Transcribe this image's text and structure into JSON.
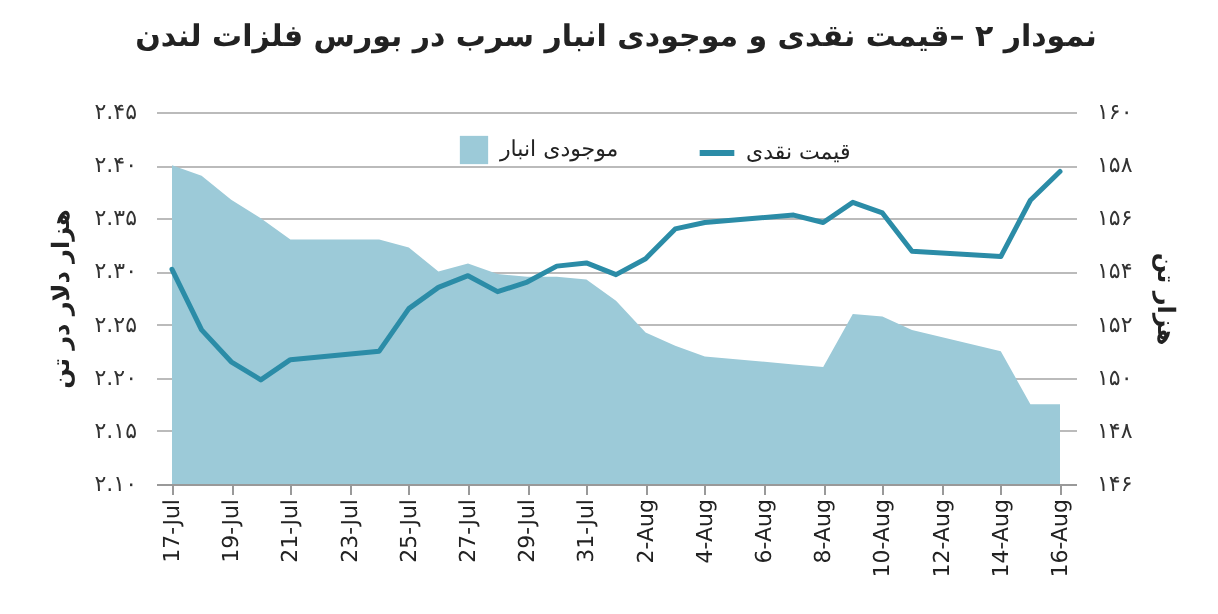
{
  "chart_data": {
    "type": "line",
    "title": "نمودار ۲ –قیمت نقدی و موجودی انبار سرب در بورس فلزات لندن",
    "ylabel": "هزار دلار در تن",
    "y2label": "هزار تن",
    "x": [
      "--07-17",
      "--07-18",
      "--07-19",
      "--07-20",
      "--07-21",
      "--07-24",
      "--07-25",
      "--07-26",
      "--07-27",
      "--07-28",
      "--07-29",
      "--07-30",
      "--07-31",
      "--08-01",
      "--08-02",
      "--08-03",
      "--08-04",
      "--08-07",
      "--08-08",
      "--08-09",
      "--08-10",
      "--08-11",
      "--08-14",
      "--08-15",
      "--08-16"
    ],
    "series": [
      {
        "name": "موجودی انبار",
        "type": "area",
        "axis": "y2",
        "color": "#9ccad8",
        "values": [
          158.0,
          157.6,
          156.7,
          156.0,
          155.2,
          155.2,
          154.9,
          154.0,
          154.3,
          153.9,
          153.8,
          153.8,
          153.7,
          152.9,
          151.7,
          151.2,
          150.8,
          150.5,
          150.4,
          152.4,
          152.3,
          151.8,
          151.0,
          149.0,
          149.0
        ]
      },
      {
        "name": "قیمت نقدی",
        "type": "line",
        "color": "#2b8ca7",
        "values": [
          2.302,
          2.245,
          2.215,
          2.198,
          2.217,
          2.225,
          2.265,
          2.285,
          2.296,
          2.281,
          2.29,
          2.305,
          2.308,
          2.297,
          2.312,
          2.34,
          2.346,
          2.353,
          2.346,
          2.365,
          2.355,
          2.319,
          2.314,
          2.367,
          2.394
        ]
      }
    ],
    "xlim": [
      "--07-17",
      "--08-16"
    ],
    "xticks": [
      {
        "value": "--07-17",
        "label": "17-Jul"
      },
      {
        "value": "--07-19",
        "label": "19-Jul"
      },
      {
        "value": "--07-21",
        "label": "21-Jul"
      },
      {
        "value": "--07-23",
        "label": "23-Jul"
      },
      {
        "value": "--07-25",
        "label": "25-Jul"
      },
      {
        "value": "--07-27",
        "label": "27-Jul"
      },
      {
        "value": "--07-29",
        "label": "29-Jul"
      },
      {
        "value": "--07-31",
        "label": "31-Jul"
      },
      {
        "value": "--08-02",
        "label": "2-Aug"
      },
      {
        "value": "--08-04",
        "label": "4-Aug"
      },
      {
        "value": "--08-06",
        "label": "6-Aug"
      },
      {
        "value": "--08-08",
        "label": "8-Aug"
      },
      {
        "value": "--08-10",
        "label": "10-Aug"
      },
      {
        "value": "--08-12",
        "label": "12-Aug"
      },
      {
        "value": "--08-14",
        "label": "14-Aug"
      },
      {
        "value": "--08-16",
        "label": "16-Aug"
      }
    ],
    "ylim": [
      2.1,
      2.45
    ],
    "yticks": [
      {
        "value": 2.1,
        "label": "۲.۱۰"
      },
      {
        "value": 2.15,
        "label": "۲.۱۵"
      },
      {
        "value": 2.2,
        "label": "۲.۲۰"
      },
      {
        "value": 2.25,
        "label": "۲.۲۵"
      },
      {
        "value": 2.3,
        "label": "۲.۳۰"
      },
      {
        "value": 2.35,
        "label": "۲.۳۵"
      },
      {
        "value": 2.4,
        "label": "۲.۴۰"
      },
      {
        "value": 2.45,
        "label": "۲.۴۵"
      }
    ],
    "y2lim": [
      146,
      160
    ],
    "y2ticks": [
      {
        "value": 146,
        "label": "۱۴۶"
      },
      {
        "value": 148,
        "label": "۱۴۸"
      },
      {
        "value": 150,
        "label": "۱۵۰"
      },
      {
        "value": 152,
        "label": "۱۵۲"
      },
      {
        "value": 154,
        "label": "۱۵۴"
      },
      {
        "value": 156,
        "label": "۱۵۶"
      },
      {
        "value": 158,
        "label": "۱۵۸"
      },
      {
        "value": 160,
        "label": "۱۶۰"
      }
    ],
    "grid": "y",
    "legend": "top"
  }
}
